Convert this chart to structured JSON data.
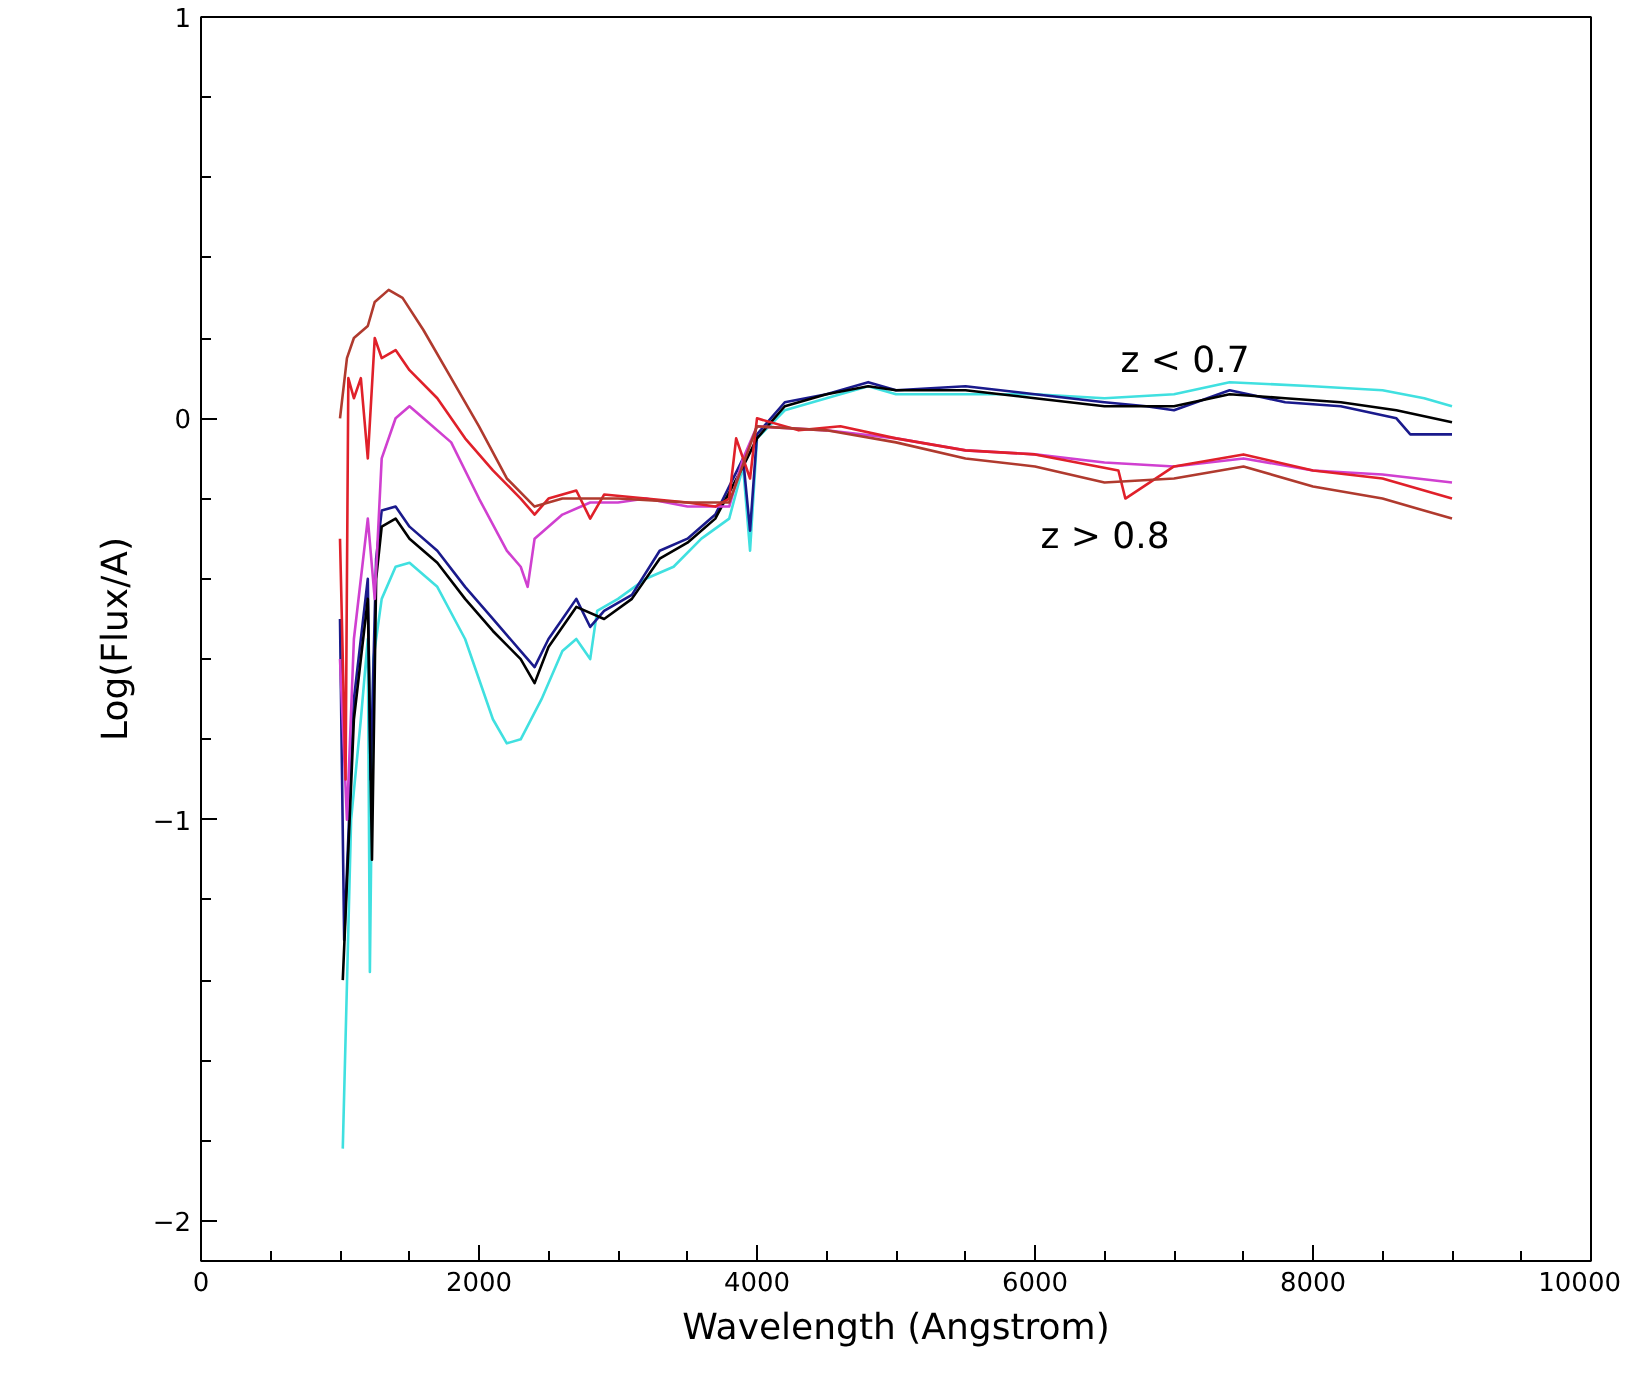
{
  "chart_data": {
    "type": "line",
    "xlabel": "Wavelength (Angstrom)",
    "ylabel": "Log(Flux/A)",
    "xlim": [
      0,
      10000
    ],
    "ylim": [
      -2.1,
      1
    ],
    "xticks": [
      0,
      2000,
      4000,
      6000,
      8000,
      10000
    ],
    "yticks": [
      -2,
      -1,
      0,
      1
    ],
    "grid": false,
    "line_style": "solid",
    "marker": "none",
    "annotations": [
      "z < 0.7",
      "z > 0.8"
    ],
    "series": [
      {
        "color": "#40e0e0",
        "x": [
          1020,
          1080,
          1150,
          1200,
          1215,
          1240,
          1300,
          1400,
          1500,
          1700,
          1900,
          2100,
          2200,
          2300,
          2450,
          2600,
          2700,
          2800,
          2850,
          3000,
          3200,
          3400,
          3600,
          3800,
          3900,
          3950,
          4000,
          4200,
          4500,
          4800,
          5000,
          5500,
          6000,
          6500,
          7000,
          7400,
          8000,
          8500,
          8800,
          9000
        ],
        "values": [
          -1.82,
          -1.0,
          -0.75,
          -0.55,
          -1.38,
          -0.6,
          -0.45,
          -0.37,
          -0.36,
          -0.42,
          -0.55,
          -0.75,
          -0.81,
          -0.8,
          -0.7,
          -0.58,
          -0.55,
          -0.6,
          -0.48,
          -0.45,
          -0.4,
          -0.37,
          -0.3,
          -0.25,
          -0.12,
          -0.33,
          -0.05,
          0.02,
          0.05,
          0.08,
          0.06,
          0.06,
          0.06,
          0.05,
          0.06,
          0.09,
          0.08,
          0.07,
          0.05,
          0.03
        ]
      },
      {
        "color": "#1a1a8c",
        "x": [
          1000,
          1030,
          1100,
          1200,
          1220,
          1260,
          1300,
          1400,
          1500,
          1700,
          1900,
          2100,
          2300,
          2400,
          2500,
          2600,
          2700,
          2800,
          2900,
          3100,
          3300,
          3500,
          3700,
          3900,
          3950,
          4000,
          4200,
          4500,
          4800,
          5000,
          5500,
          6000,
          6500,
          6800,
          7000,
          7400,
          7800,
          8200,
          8600,
          8700,
          9000
        ],
        "values": [
          -0.5,
          -1.3,
          -0.7,
          -0.4,
          -0.9,
          -0.35,
          -0.23,
          -0.22,
          -0.27,
          -0.33,
          -0.42,
          -0.5,
          -0.58,
          -0.62,
          -0.55,
          -0.5,
          -0.45,
          -0.52,
          -0.48,
          -0.44,
          -0.33,
          -0.3,
          -0.24,
          -0.1,
          -0.28,
          -0.04,
          0.04,
          0.06,
          0.09,
          0.07,
          0.08,
          0.06,
          0.04,
          0.03,
          0.02,
          0.07,
          0.04,
          0.03,
          0.0,
          -0.04,
          -0.04
        ]
      },
      {
        "color": "#000000",
        "x": [
          1020,
          1100,
          1200,
          1230,
          1260,
          1300,
          1400,
          1500,
          1700,
          1900,
          2100,
          2300,
          2400,
          2500,
          2700,
          2900,
          3100,
          3300,
          3500,
          3700,
          3900,
          4000,
          4200,
          4500,
          4800,
          5000,
          5500,
          6000,
          6500,
          7000,
          7400,
          7800,
          8200,
          8600,
          9000
        ],
        "values": [
          -1.4,
          -0.75,
          -0.45,
          -1.1,
          -0.4,
          -0.27,
          -0.25,
          -0.3,
          -0.36,
          -0.45,
          -0.53,
          -0.6,
          -0.66,
          -0.57,
          -0.47,
          -0.5,
          -0.45,
          -0.35,
          -0.31,
          -0.25,
          -0.12,
          -0.05,
          0.03,
          0.06,
          0.08,
          0.07,
          0.07,
          0.05,
          0.03,
          0.03,
          0.06,
          0.05,
          0.04,
          0.02,
          -0.01
        ]
      },
      {
        "color": "#d040d0",
        "x": [
          1000,
          1050,
          1100,
          1200,
          1250,
          1300,
          1400,
          1500,
          1600,
          1800,
          2000,
          2200,
          2300,
          2350,
          2400,
          2600,
          2800,
          3000,
          3200,
          3500,
          3800,
          3900,
          4000,
          4500,
          5000,
          5500,
          6000,
          6500,
          7000,
          7500,
          8000,
          8500,
          9000
        ],
        "values": [
          -0.6,
          -1.0,
          -0.55,
          -0.25,
          -0.45,
          -0.1,
          0.0,
          0.03,
          0.0,
          -0.06,
          -0.2,
          -0.33,
          -0.37,
          -0.42,
          -0.3,
          -0.24,
          -0.21,
          -0.21,
          -0.2,
          -0.22,
          -0.22,
          -0.1,
          -0.02,
          -0.03,
          -0.05,
          -0.08,
          -0.09,
          -0.11,
          -0.12,
          -0.1,
          -0.13,
          -0.14,
          -0.16
        ]
      },
      {
        "color": "#e0202a",
        "x": [
          1000,
          1040,
          1060,
          1100,
          1150,
          1200,
          1250,
          1300,
          1400,
          1500,
          1700,
          1900,
          2100,
          2300,
          2400,
          2500,
          2700,
          2800,
          2900,
          3200,
          3500,
          3700,
          3800,
          3850,
          3950,
          4000,
          4300,
          4600,
          5000,
          5500,
          6000,
          6600,
          6650,
          7000,
          7500,
          8000,
          8500,
          9000
        ],
        "values": [
          -0.3,
          -0.9,
          0.1,
          0.05,
          0.1,
          -0.1,
          0.2,
          0.15,
          0.17,
          0.12,
          0.05,
          -0.05,
          -0.13,
          -0.2,
          -0.24,
          -0.2,
          -0.18,
          -0.25,
          -0.19,
          -0.2,
          -0.21,
          -0.22,
          -0.2,
          -0.05,
          -0.15,
          0.0,
          -0.03,
          -0.02,
          -0.05,
          -0.08,
          -0.09,
          -0.13,
          -0.2,
          -0.12,
          -0.09,
          -0.13,
          -0.15,
          -0.2
        ]
      },
      {
        "color": "#b03a2e",
        "x": [
          1000,
          1050,
          1100,
          1200,
          1250,
          1350,
          1450,
          1600,
          1800,
          2000,
          2200,
          2400,
          2600,
          2800,
          3000,
          3500,
          3800,
          4000,
          4500,
          5000,
          5500,
          6000,
          6500,
          7000,
          7500,
          8000,
          8500,
          9000
        ],
        "values": [
          0.0,
          0.15,
          0.2,
          0.23,
          0.29,
          0.32,
          0.3,
          0.22,
          0.1,
          -0.02,
          -0.15,
          -0.22,
          -0.2,
          -0.2,
          -0.2,
          -0.21,
          -0.21,
          -0.02,
          -0.03,
          -0.06,
          -0.1,
          -0.12,
          -0.16,
          -0.15,
          -0.12,
          -0.17,
          -0.2,
          -0.25
        ]
      }
    ]
  }
}
